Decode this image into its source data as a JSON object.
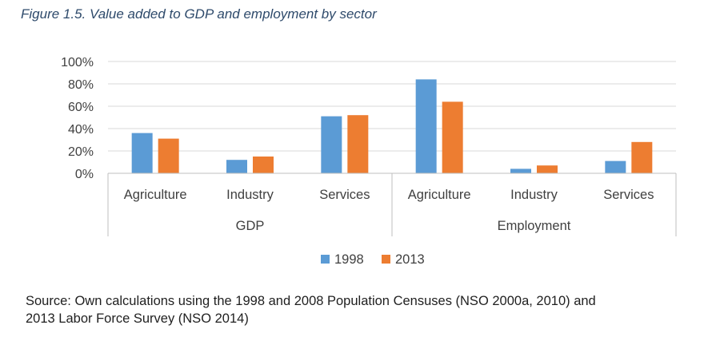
{
  "figure_title": "Figure 1.5. Value added to GDP and employment by sector",
  "source_line1": "Source: Own calculations using the 1998 and 2008 Population Censuses (NSO 2000a, 2010) and",
  "source_line2": "2013 Labor Force Survey (NSO 2014)",
  "colors": {
    "1998": "#5b9bd5",
    "2013": "#ed7d31",
    "grid": "#d9d9d9",
    "axis": "#bfbfbf"
  },
  "chart_data": {
    "type": "bar",
    "title": "",
    "xlabel": "",
    "ylabel": "",
    "ylim": [
      0,
      100
    ],
    "yticks": [
      "0%",
      "20%",
      "40%",
      "60%",
      "80%",
      "100%"
    ],
    "groups": [
      {
        "name": "GDP",
        "categories": [
          "Agriculture",
          "Industry",
          "Services"
        ]
      },
      {
        "name": "Employment",
        "categories": [
          "Agriculture",
          "Industry",
          "Services"
        ]
      }
    ],
    "categories": [
      "Agriculture",
      "Industry",
      "Services",
      "Agriculture",
      "Industry",
      "Services"
    ],
    "series": [
      {
        "name": "1998",
        "values": [
          36,
          12,
          51,
          84,
          4,
          11
        ]
      },
      {
        "name": "2013",
        "values": [
          31,
          15,
          52,
          64,
          7,
          28
        ]
      }
    ],
    "grid": true,
    "legend": "bottom"
  }
}
